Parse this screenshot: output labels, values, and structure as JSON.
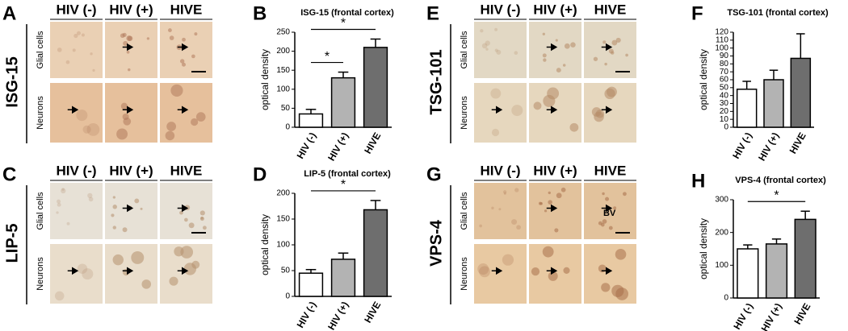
{
  "micrographs": [
    {
      "letter": "A",
      "marker": "ISG-15",
      "columns": [
        "HIV (-)",
        "HIV (+)",
        "HIVE"
      ],
      "rows": [
        "Glial cells",
        "Neurons"
      ]
    },
    {
      "letter": "C",
      "marker": "LIP-5",
      "columns": [
        "HIV (-)",
        "HIV (+)",
        "HIVE"
      ],
      "rows": [
        "Glial cells",
        "Neurons"
      ]
    },
    {
      "letter": "E",
      "marker": "TSG-101",
      "columns": [
        "HIV (-)",
        "HIV (+)",
        "HIVE"
      ],
      "rows": [
        "Glial cells",
        "Neurons"
      ]
    },
    {
      "letter": "G",
      "marker": "VPS-4",
      "columns": [
        "HIV (-)",
        "HIV (+)",
        "HIVE"
      ],
      "rows": [
        "Glial cells",
        "Neurons"
      ],
      "inset_label": "BV"
    }
  ],
  "chart_data": [
    {
      "type": "bar",
      "panel": "B",
      "title": "ISG-15 (frontal cortex)",
      "y_label": "optical density",
      "categories": [
        "HIV (-)",
        "HIV (+)",
        "HIVE"
      ],
      "values": [
        35,
        130,
        210
      ],
      "errors": [
        12,
        15,
        22
      ],
      "colors": [
        "#ffffff",
        "#b3b3b3",
        "#6e6e6e"
      ],
      "ylim": [
        0,
        250
      ],
      "yticks": [
        0,
        50,
        100,
        150,
        200,
        250
      ],
      "annotations": [
        {
          "text": "*",
          "from": "HIV (-)",
          "to": "HIV (+)"
        },
        {
          "text": "*",
          "from": "HIV (-)",
          "to": "HIVE"
        }
      ]
    },
    {
      "type": "bar",
      "panel": "D",
      "title": "LIP-5 (frontal cortex)",
      "y_label": "optical density",
      "categories": [
        "HIV (-)",
        "HIV (+)",
        "HIVE"
      ],
      "values": [
        45,
        72,
        168
      ],
      "errors": [
        7,
        12,
        18
      ],
      "colors": [
        "#ffffff",
        "#b3b3b3",
        "#6e6e6e"
      ],
      "ylim": [
        0,
        200
      ],
      "yticks": [
        0,
        50,
        100,
        150,
        200
      ],
      "annotations": [
        {
          "text": "*",
          "from": "HIV (-)",
          "to": "HIVE"
        }
      ]
    },
    {
      "type": "bar",
      "panel": "F",
      "title": "TSG-101 (frontal cortex)",
      "y_label": "optical density",
      "categories": [
        "HIV (-)",
        "HIV (+)",
        "HIVE"
      ],
      "values": [
        48,
        60,
        87
      ],
      "errors": [
        10,
        12,
        31
      ],
      "colors": [
        "#ffffff",
        "#b3b3b3",
        "#6e6e6e"
      ],
      "ylim": [
        0,
        120
      ],
      "yticks": [
        0,
        10,
        20,
        30,
        40,
        50,
        60,
        70,
        80,
        90,
        100,
        110,
        120
      ],
      "annotations": []
    },
    {
      "type": "bar",
      "panel": "H",
      "title": "VPS-4 (frontal cortex)",
      "y_label": "optical density",
      "categories": [
        "HIV (-)",
        "HIV (+)",
        "HIVE"
      ],
      "values": [
        150,
        165,
        240
      ],
      "errors": [
        12,
        15,
        25
      ],
      "colors": [
        "#ffffff",
        "#b3b3b3",
        "#6e6e6e"
      ],
      "ylim": [
        0,
        300
      ],
      "yticks": [
        0,
        100,
        200,
        300
      ],
      "annotations": [
        {
          "text": "*",
          "from": "HIV (-)",
          "to": "HIVE"
        }
      ]
    }
  ]
}
